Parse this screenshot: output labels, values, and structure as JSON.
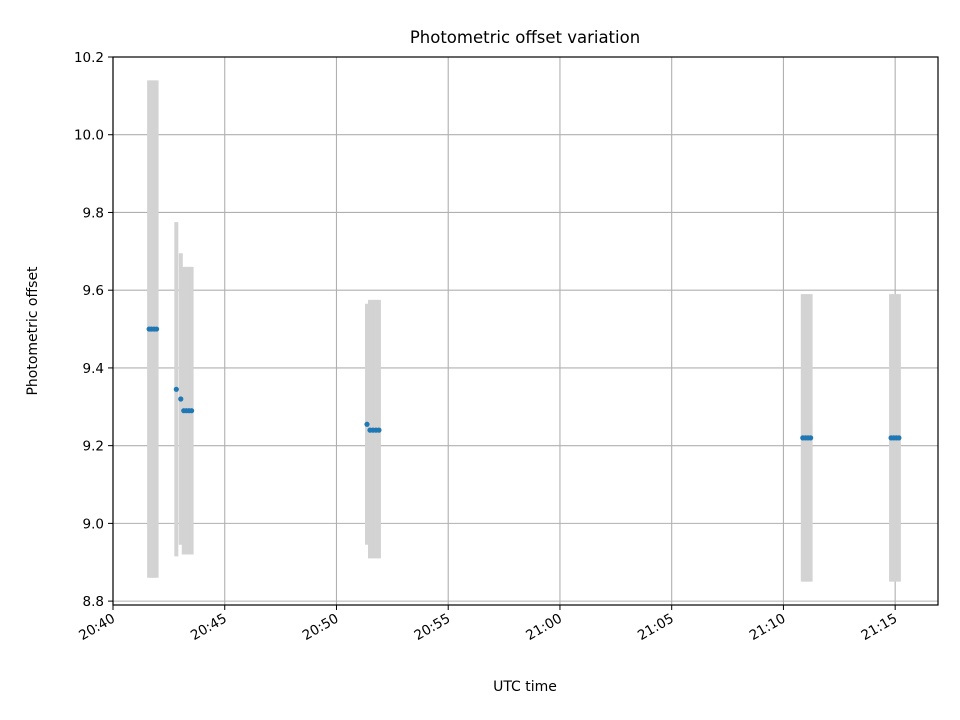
{
  "chart_data": {
    "type": "scatter",
    "title": "Photometric offset variation",
    "xlabel": "UTC time",
    "ylabel": "Photometric offset",
    "grid": true,
    "xlim": [
      "20:40:00",
      "21:16:55"
    ],
    "ylim": [
      8.79,
      10.2
    ],
    "x_ticks": [
      "20:40",
      "20:45",
      "20:50",
      "20:55",
      "21:00",
      "21:05",
      "21:10",
      "21:15"
    ],
    "y_ticks": [
      "8.8",
      "9.0",
      "9.2",
      "9.4",
      "9.6",
      "9.8",
      "10.0",
      "10.2"
    ],
    "point_color": "#1f77b4",
    "errorbar_color": "#d3d3d3",
    "points": [
      {
        "time": "20:41:37",
        "offset": 9.5,
        "low": 8.86,
        "high": 10.14
      },
      {
        "time": "20:41:43",
        "offset": 9.5,
        "low": 8.86,
        "high": 10.14
      },
      {
        "time": "20:41:50",
        "offset": 9.5,
        "low": 8.86,
        "high": 10.14
      },
      {
        "time": "20:41:57",
        "offset": 9.5,
        "low": 8.86,
        "high": 10.14
      },
      {
        "time": "20:42:50",
        "offset": 9.345,
        "low": 8.915,
        "high": 9.775
      },
      {
        "time": "20:43:02",
        "offset": 9.32,
        "low": 8.945,
        "high": 9.695
      },
      {
        "time": "20:43:10",
        "offset": 9.29,
        "low": 8.92,
        "high": 9.66
      },
      {
        "time": "20:43:17",
        "offset": 9.29,
        "low": 8.92,
        "high": 9.66
      },
      {
        "time": "20:43:24",
        "offset": 9.29,
        "low": 8.92,
        "high": 9.66
      },
      {
        "time": "20:43:31",
        "offset": 9.29,
        "low": 8.92,
        "high": 9.66
      },
      {
        "time": "20:51:22",
        "offset": 9.255,
        "low": 8.945,
        "high": 9.565
      },
      {
        "time": "20:51:30",
        "offset": 9.24,
        "low": 8.91,
        "high": 9.575
      },
      {
        "time": "20:51:38",
        "offset": 9.24,
        "low": 8.91,
        "high": 9.575
      },
      {
        "time": "20:51:46",
        "offset": 9.24,
        "low": 8.91,
        "high": 9.575
      },
      {
        "time": "20:51:54",
        "offset": 9.24,
        "low": 8.91,
        "high": 9.575
      },
      {
        "time": "21:10:52",
        "offset": 9.22,
        "low": 8.85,
        "high": 9.59
      },
      {
        "time": "21:10:59",
        "offset": 9.22,
        "low": 8.85,
        "high": 9.59
      },
      {
        "time": "21:11:06",
        "offset": 9.22,
        "low": 8.85,
        "high": 9.59
      },
      {
        "time": "21:11:13",
        "offset": 9.22,
        "low": 8.85,
        "high": 9.59
      },
      {
        "time": "21:14:49",
        "offset": 9.22,
        "low": 8.85,
        "high": 9.59
      },
      {
        "time": "21:14:56",
        "offset": 9.22,
        "low": 8.85,
        "high": 9.59
      },
      {
        "time": "21:15:03",
        "offset": 9.22,
        "low": 8.85,
        "high": 9.59
      },
      {
        "time": "21:15:10",
        "offset": 9.22,
        "low": 8.85,
        "high": 9.59
      }
    ]
  }
}
